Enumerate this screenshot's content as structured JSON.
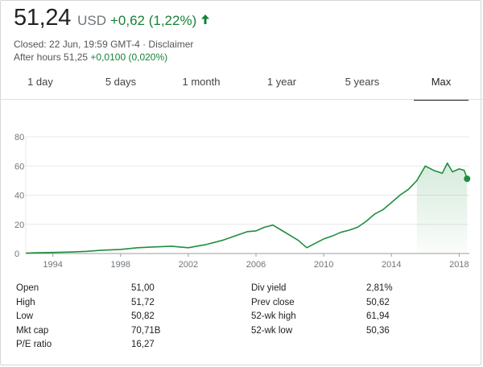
{
  "quote": {
    "price": "51,24",
    "currency": "USD",
    "change": "+0,62 (1,22%)",
    "closed_line": "Closed: 22 Jun, 19:59 GMT-4 · Disclaimer",
    "after_hours_label": "After hours 51,25",
    "after_hours_change": "+0,0100 (0,020%)",
    "up_color": "#188038"
  },
  "tabs": [
    {
      "label": "1 day",
      "active": false
    },
    {
      "label": "5 days",
      "active": false
    },
    {
      "label": "1 month",
      "active": false
    },
    {
      "label": "1 year",
      "active": false
    },
    {
      "label": "5 years",
      "active": false
    },
    {
      "label": "Max",
      "active": true
    }
  ],
  "chart_data": {
    "type": "area",
    "xlabel": "",
    "ylabel": "",
    "xlim": [
      1992.4,
      2018.6
    ],
    "ylim": [
      0,
      80
    ],
    "y_ticks": [
      0,
      20,
      40,
      60,
      80
    ],
    "x_ticks": [
      1994,
      1998,
      2002,
      2006,
      2010,
      2014,
      2018
    ],
    "grid": true,
    "line_color": "#1e8e3e",
    "series": [
      {
        "x": [
          1992.4,
          1993,
          1994,
          1995,
          1996,
          1997,
          1998,
          1999,
          2000,
          2001,
          2002,
          2003,
          2004,
          2005,
          2005.5,
          2006,
          2006.5,
          2007,
          2007.5,
          2008,
          2008.5,
          2009,
          2009.5,
          2010,
          2010.5,
          2011,
          2011.5,
          2012,
          2012.5,
          2013,
          2013.5,
          2014,
          2014.5,
          2015,
          2015.5,
          2016,
          2016.5,
          2017,
          2017.3,
          2017.6,
          2018,
          2018.3,
          2018.47
        ],
        "y": [
          0.3,
          0.5,
          0.7,
          1.0,
          1.5,
          2.3,
          2.8,
          4.0,
          4.5,
          5.0,
          4.0,
          6.0,
          9.0,
          13.0,
          15.0,
          15.5,
          18.0,
          19.5,
          16.0,
          12.5,
          9.0,
          4.0,
          7.0,
          10.0,
          12.0,
          14.5,
          16.0,
          18.0,
          22.0,
          27.0,
          30.0,
          35.0,
          40.0,
          44.0,
          50.0,
          60.0,
          57.0,
          55.0,
          62.0,
          56.0,
          58.0,
          57.0,
          51.24
        ]
      }
    ]
  },
  "stats": {
    "left": [
      {
        "label": "Open",
        "value": "51,00"
      },
      {
        "label": "High",
        "value": "51,72"
      },
      {
        "label": "Low",
        "value": "50,82"
      },
      {
        "label": "Mkt cap",
        "value": "70,71B"
      },
      {
        "label": "P/E ratio",
        "value": "16,27"
      }
    ],
    "right": [
      {
        "label": "Div yield",
        "value": "2,81%"
      },
      {
        "label": "Prev close",
        "value": "50,62"
      },
      {
        "label": "52-wk high",
        "value": "61,94"
      },
      {
        "label": "52-wk low",
        "value": "50,36"
      }
    ]
  }
}
